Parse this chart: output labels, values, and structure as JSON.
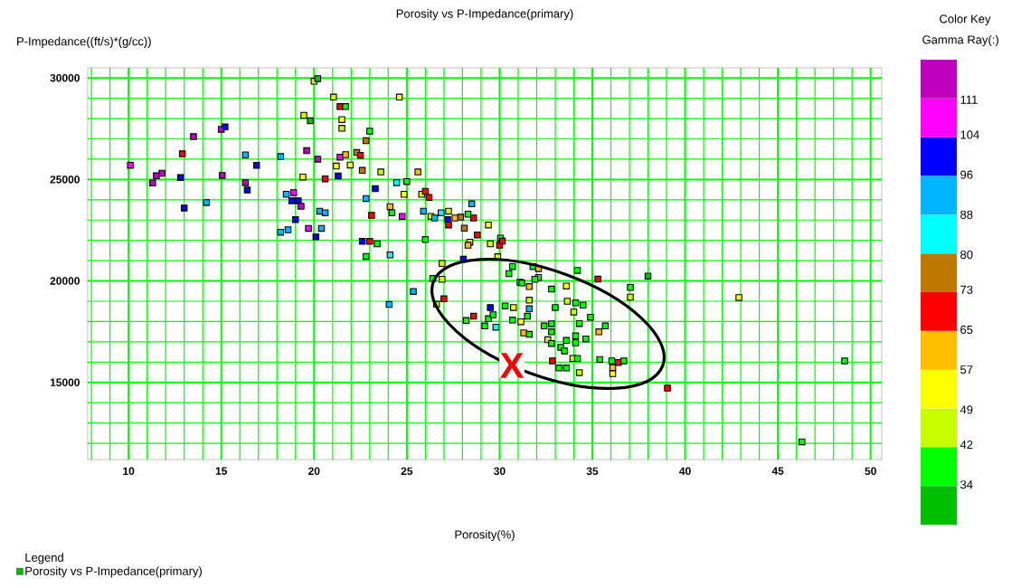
{
  "chart_data": {
    "type": "scatter",
    "title": "Porosity vs P-Impedance(primary)",
    "xlabel": "Porosity(%)",
    "ylabel": "P-Impedance((ft/s)*(g/cc))",
    "clabel": "Gamma Ray(:)",
    "legend_title": "Legend",
    "xlim": [
      7.8,
      50.6
    ],
    "ylim": [
      11200,
      30500
    ],
    "xticks": [
      {
        "value": 8,
        "label": null
      },
      {
        "value": 9,
        "label": null
      },
      10,
      {
        "value": 11,
        "label": null
      },
      {
        "value": 12,
        "label": null
      },
      {
        "value": 13,
        "label": null
      },
      {
        "value": 14,
        "label": null
      },
      15,
      {
        "value": 16,
        "label": null
      },
      {
        "value": 17,
        "label": null
      },
      {
        "value": 18,
        "label": null
      },
      {
        "value": 19,
        "label": null
      },
      20,
      {
        "value": 21,
        "label": null
      },
      {
        "value": 22,
        "label": null
      },
      {
        "value": 23,
        "label": null
      },
      {
        "value": 24,
        "label": null
      },
      25,
      {
        "value": 26,
        "label": null
      },
      {
        "value": 27,
        "label": null
      },
      {
        "value": 28,
        "label": null
      },
      {
        "value": 29,
        "label": null
      },
      30,
      {
        "value": 31,
        "label": null
      },
      {
        "value": 32,
        "label": null
      },
      {
        "value": 33,
        "label": null
      },
      {
        "value": 34,
        "label": null
      },
      35,
      {
        "value": 36,
        "label": null
      },
      {
        "value": 37,
        "label": null
      },
      {
        "value": 38,
        "label": null
      },
      {
        "value": 39,
        "label": null
      },
      40,
      {
        "value": 41,
        "label": null
      },
      {
        "value": 42,
        "label": null
      },
      {
        "value": 43,
        "label": null
      },
      {
        "value": 44,
        "label": null
      },
      45,
      {
        "value": 46,
        "label": null
      },
      {
        "value": 47,
        "label": null
      },
      {
        "value": 48,
        "label": null
      },
      {
        "value": 49,
        "label": null
      },
      50
    ],
    "yticks": [
      {
        "value": 12000,
        "label": null
      },
      {
        "value": 13000,
        "label": null
      },
      {
        "value": 14000,
        "label": null
      },
      15000,
      {
        "value": 16000,
        "label": null
      },
      {
        "value": 17000,
        "label": null
      },
      {
        "value": 18000,
        "label": null
      },
      {
        "value": 19000,
        "label": null
      },
      20000,
      {
        "value": 21000,
        "label": null
      },
      {
        "value": 22000,
        "label": null
      },
      {
        "value": 23000,
        "label": null
      },
      {
        "value": 24000,
        "label": null
      },
      25000,
      {
        "value": 26000,
        "label": null
      },
      {
        "value": 27000,
        "label": null
      },
      {
        "value": 28000,
        "label": null
      },
      {
        "value": 29000,
        "label": null
      },
      30000
    ],
    "clim": [
      26,
      119
    ],
    "cticks": [
      34,
      42,
      49,
      57,
      65,
      73,
      80,
      88,
      96,
      104,
      111
    ],
    "grid": true,
    "legend": "bottom left",
    "marker": "square",
    "annotations": [
      "Color Key",
      "X"
    ],
    "series": [
      {
        "name": "Porosity vs P-Impedance(primary)",
        "x": [
          10.1,
          11.3,
          11.5,
          11.8,
          12.8,
          12.9,
          13.0,
          13.5,
          14.2,
          15.0,
          15.2,
          15.05,
          16.3,
          16.9,
          16.3,
          16.4,
          18.2,
          18.5,
          18.9,
          18.8,
          19.15,
          19.3,
          19.0,
          18.2,
          18.6,
          19.7,
          20.1,
          20.4,
          20.3,
          20.6,
          19.6,
          20.2,
          19.4,
          20.6,
          21.3,
          21.2,
          21.4,
          21.7,
          20.0,
          20.2,
          21.05,
          21.4,
          21.7,
          19.45,
          19.8,
          21.5,
          21.5,
          23.0,
          22.8,
          22.3,
          22.5,
          21.95,
          22.6,
          23.6,
          25.6,
          24.6,
          24.45,
          25.0,
          23.3,
          22.8,
          24.85,
          25.8,
          26.0,
          26.2,
          24.1,
          24.2,
          24.75,
          23.1,
          25.9,
          26.3,
          26.5,
          26.85,
          27.25,
          27.2,
          27.25,
          27.6,
          27.9,
          28.3,
          28.6,
          28.5,
          28.1,
          29.4,
          28.8,
          28.4,
          28.3,
          29.5,
          30.05,
          30.0,
          30.15,
          26.0,
          22.6,
          23.0,
          23.4,
          22.8,
          24.1,
          28.05,
          26.9,
          29.9,
          30.7,
          30.5,
          26.4,
          26.9,
          31.1,
          25.35,
          27.0,
          26.6,
          28.2,
          28.6,
          29.2,
          29.4,
          29.65,
          29.5,
          29.8,
          30.3,
          30.75,
          30.7,
          31.15,
          31.3,
          31.6,
          31.5,
          31.6,
          31.6,
          31.2,
          31.6,
          31.8,
          32.1,
          32.1,
          31.9,
          32.8,
          33.6,
          34.2,
          35.3,
          38.0,
          37.05,
          37.05,
          33.0,
          33.65,
          34.1,
          34.5,
          34.0,
          34.9,
          34.3,
          35.7,
          35.35,
          32.4,
          32.8,
          32.8,
          32.6,
          32.8,
          33.3,
          33.5,
          33.6,
          34.1,
          34.1,
          34.65,
          32.85,
          33.2,
          33.6,
          33.95,
          34.2,
          34.3,
          35.4,
          36.05,
          36.4,
          36.7,
          36.1,
          36.1,
          39.05,
          42.9,
          48.6,
          46.3,
          24.05
        ],
        "values": [
          25700,
          24830,
          25180,
          25310,
          25100,
          26260,
          23590,
          27110,
          23860,
          27470,
          27590,
          25200,
          26210,
          25700,
          24840,
          24480,
          26130,
          24270,
          24350,
          23950,
          23950,
          23680,
          23020,
          22400,
          22520,
          22590,
          22170,
          22590,
          23440,
          23360,
          26420,
          26000,
          25120,
          25030,
          25170,
          25660,
          26100,
          26220,
          29840,
          29970,
          29060,
          28590,
          28590,
          28160,
          27890,
          27950,
          27520,
          27380,
          26910,
          26330,
          26190,
          25710,
          25450,
          25370,
          25370,
          29060,
          24840,
          24900,
          24550,
          24060,
          24270,
          24270,
          24420,
          24120,
          23660,
          23360,
          23180,
          23230,
          23440,
          23180,
          23100,
          23360,
          23440,
          23020,
          22760,
          23100,
          23140,
          23290,
          23100,
          23800,
          22600,
          22760,
          22270,
          21910,
          21760,
          21830,
          22110,
          21760,
          21960,
          22040,
          21950,
          21950,
          21830,
          21210,
          21280,
          21070,
          20860,
          21190,
          20710,
          20360,
          20120,
          20080,
          19940,
          19480,
          19120,
          18850,
          18050,
          18260,
          17780,
          18140,
          18330,
          18690,
          17720,
          18770,
          18690,
          18070,
          17990,
          17440,
          17370,
          18260,
          18630,
          19050,
          19900,
          19720,
          20710,
          20610,
          20170,
          20080,
          19600,
          19750,
          20520,
          20090,
          20240,
          19680,
          19200,
          18690,
          19000,
          18920,
          18810,
          18470,
          18210,
          17900,
          17780,
          17490,
          17780,
          17890,
          17490,
          17100,
          16920,
          16730,
          16550,
          17070,
          17290,
          16950,
          17140,
          16060,
          15710,
          15710,
          16180,
          16180,
          15480,
          16130,
          16060,
          15980,
          16060,
          15730,
          15430,
          14720,
          19180,
          16060,
          12070,
          18840
        ],
        "cvalues": [
          107,
          115,
          115,
          115,
          100,
          69,
          100,
          115,
          92,
          115,
          100,
          115,
          92,
          100,
          115,
          100,
          92,
          92,
          107,
          100,
          100,
          115,
          100,
          92,
          92,
          107,
          100,
          92,
          92,
          92,
          115,
          115,
          53,
          69,
          100,
          53,
          107,
          61,
          45,
          30,
          45,
          69,
          38,
          45,
          30,
          53,
          45,
          38,
          76,
          76,
          69,
          53,
          76,
          45,
          61,
          53,
          84,
          38,
          100,
          92,
          53,
          45,
          69,
          69,
          61,
          38,
          107,
          69,
          92,
          45,
          92,
          84,
          45,
          100,
          69,
          61,
          76,
          38,
          69,
          92,
          76,
          53,
          69,
          45,
          61,
          45,
          38,
          69,
          69,
          38,
          100,
          69,
          38,
          38,
          84,
          100,
          45,
          45,
          38,
          38,
          38,
          45,
          38,
          92,
          69,
          45,
          38,
          69,
          38,
          38,
          38,
          100,
          84,
          38,
          53,
          38,
          53,
          61,
          38,
          38,
          92,
          45,
          38,
          61,
          38,
          61,
          38,
          38,
          38,
          53,
          38,
          69,
          30,
          38,
          45,
          38,
          45,
          38,
          38,
          45,
          38,
          38,
          38,
          61,
          38,
          38,
          38,
          45,
          38,
          38,
          38,
          38,
          38,
          38,
          38,
          69,
          38,
          38,
          45,
          38,
          45,
          38,
          38,
          69,
          38,
          61,
          53,
          69,
          53,
          38,
          38,
          92
        ]
      }
    ]
  }
}
